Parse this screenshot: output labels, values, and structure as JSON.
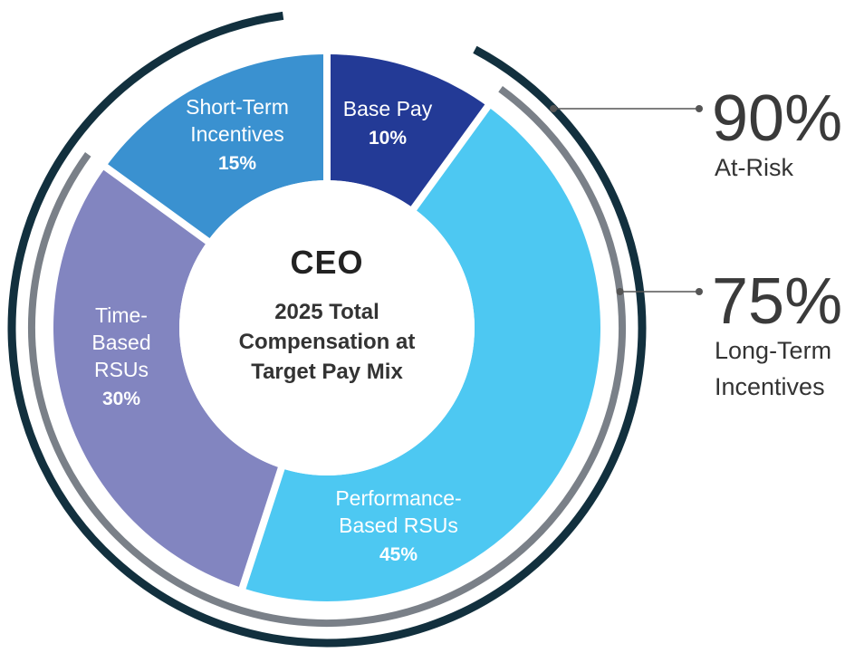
{
  "chart_data": {
    "type": "pie",
    "variant": "donut",
    "center": {
      "title": "CEO",
      "subtitle_lines": [
        "2025 Total",
        "Compensation at",
        "Target Pay Mix"
      ]
    },
    "slices": [
      {
        "label_lines": [
          "Base Pay"
        ],
        "value": 10,
        "value_label": "10%",
        "color": "#233a96"
      },
      {
        "label_lines": [
          "Performance-",
          "Based RSUs"
        ],
        "value": 45,
        "value_label": "45%",
        "color": "#4dc8f2"
      },
      {
        "label_lines": [
          "Time-",
          "Based",
          "RSUs"
        ],
        "value": 30,
        "value_label": "30%",
        "color": "#8285c0"
      },
      {
        "label_lines": [
          "Short-Term",
          "Incentives"
        ],
        "value": 15,
        "value_label": "15%",
        "color": "#3a91d0"
      }
    ],
    "arcs": [
      {
        "name": "at-risk",
        "percent": 90,
        "value_label": "90%",
        "label_lines": [
          "At-Risk"
        ],
        "color": "#12303e"
      },
      {
        "name": "long-term-incentives",
        "percent": 75,
        "value_label": "75%",
        "label_lines": [
          "Long-Term",
          "Incentives"
        ],
        "color": "#7a8088"
      }
    ]
  }
}
